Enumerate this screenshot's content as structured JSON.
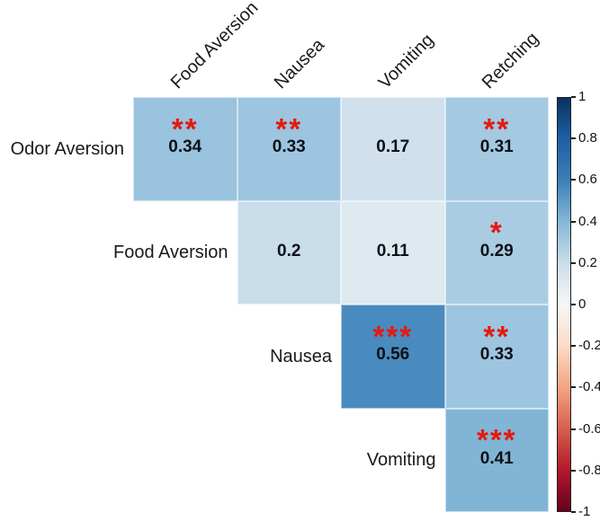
{
  "chart_data": {
    "type": "heatmap",
    "subtype": "upper-triangle-correlation-matrix",
    "row_labels": [
      "Odor Aversion",
      "Food Aversion",
      "Nausea",
      "Vomiting"
    ],
    "col_labels": [
      "Food Aversion",
      "Nausea",
      "Vomiting",
      "Retching"
    ],
    "cells": [
      {
        "row": 0,
        "col": 0,
        "value": "0.34",
        "stars": "**"
      },
      {
        "row": 0,
        "col": 1,
        "value": "0.33",
        "stars": "**"
      },
      {
        "row": 0,
        "col": 2,
        "value": "0.17",
        "stars": ""
      },
      {
        "row": 0,
        "col": 3,
        "value": "0.31",
        "stars": "**"
      },
      {
        "row": 1,
        "col": 1,
        "value": "0.2",
        "stars": ""
      },
      {
        "row": 1,
        "col": 2,
        "value": "0.11",
        "stars": ""
      },
      {
        "row": 1,
        "col": 3,
        "value": "0.29",
        "stars": "*"
      },
      {
        "row": 2,
        "col": 2,
        "value": "0.56",
        "stars": "***"
      },
      {
        "row": 2,
        "col": 3,
        "value": "0.33",
        "stars": "**"
      },
      {
        "row": 3,
        "col": 3,
        "value": "0.41",
        "stars": "***"
      }
    ],
    "value_range": [
      -1,
      1
    ],
    "grid_on": true,
    "colorbar": {
      "position": "right",
      "orientation": "vertical",
      "tick_labels": [
        "1",
        "0.8",
        "0.6",
        "0.4",
        "0.2",
        "0",
        "-0.2",
        "-0.4",
        "-0.6",
        "-0.8",
        "-1"
      ],
      "tick_values": [
        1,
        0.8,
        0.6,
        0.4,
        0.2,
        0,
        -0.2,
        -0.4,
        -0.6,
        -0.8,
        -1
      ]
    }
  },
  "colors": {
    "background": "#FFFFFF",
    "star": "#E5190E",
    "value_text": "#0D1117",
    "label_text": "#1A1A1A",
    "colorbar_border": "#1F1F1F",
    "cell_grid_line": "rgba(255,255,255,0.55)",
    "colormap_stops": [
      {
        "v": -1.0,
        "color": "#67001F"
      },
      {
        "v": -0.8,
        "color": "#B2182B"
      },
      {
        "v": -0.6,
        "color": "#D6604D"
      },
      {
        "v": -0.4,
        "color": "#F4A582"
      },
      {
        "v": -0.2,
        "color": "#FDDBC7"
      },
      {
        "v": 0.0,
        "color": "#F7F7F7"
      },
      {
        "v": 0.2,
        "color": "#C9DDEB"
      },
      {
        "v": 0.4,
        "color": "#85B8D8"
      },
      {
        "v": 0.6,
        "color": "#3A80B8"
      },
      {
        "v": 0.8,
        "color": "#1F5FA6"
      },
      {
        "v": 1.0,
        "color": "#0A3161"
      }
    ]
  }
}
